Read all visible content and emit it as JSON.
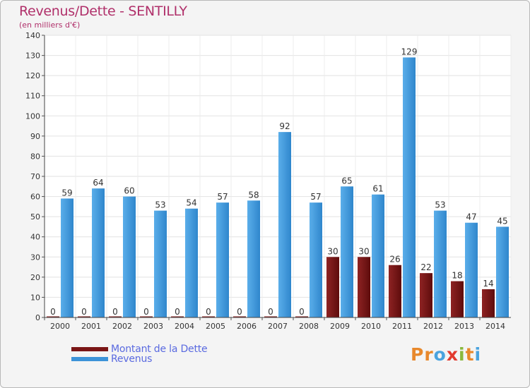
{
  "title": "Revenus/Dette - SENTILLY",
  "subtitle": "(en milliers d'€)",
  "colors": {
    "title": "#b0306a",
    "dette": "#7a1515",
    "revenus": "#3d93d8",
    "legend_text": "#5a6ae0"
  },
  "legend": [
    {
      "label": "Montant de la Dette",
      "color": "#7a1515"
    },
    {
      "label": "Revenus",
      "color": "#3d93d8"
    }
  ],
  "logo": {
    "letters": [
      "P",
      "r",
      "o",
      "x",
      "i",
      "t",
      "i"
    ],
    "colors": [
      "#e8882b",
      "#e8882b",
      "#4aa3de",
      "#e23a2f",
      "#89b83c",
      "#e8882b",
      "#4aa3de"
    ]
  },
  "chart_data": {
    "type": "bar",
    "categories": [
      "2000",
      "2001",
      "2002",
      "2003",
      "2004",
      "2005",
      "2006",
      "2007",
      "2008",
      "2009",
      "2010",
      "2011",
      "2012",
      "2013",
      "2014"
    ],
    "series": [
      {
        "name": "Montant de la Dette",
        "values": [
          0,
          0,
          0,
          0,
          0,
          0,
          0,
          0,
          0,
          30,
          30,
          26,
          22,
          18,
          14
        ]
      },
      {
        "name": "Revenus",
        "values": [
          59,
          64,
          60,
          53,
          54,
          57,
          58,
          92,
          57,
          65,
          61,
          129,
          53,
          47,
          45
        ]
      }
    ],
    "ylim": [
      0,
      140
    ],
    "yticks": [
      0,
      10,
      20,
      30,
      40,
      50,
      60,
      70,
      80,
      90,
      100,
      110,
      120,
      130,
      140
    ],
    "grid": true,
    "legend_position": "bottom-left"
  }
}
